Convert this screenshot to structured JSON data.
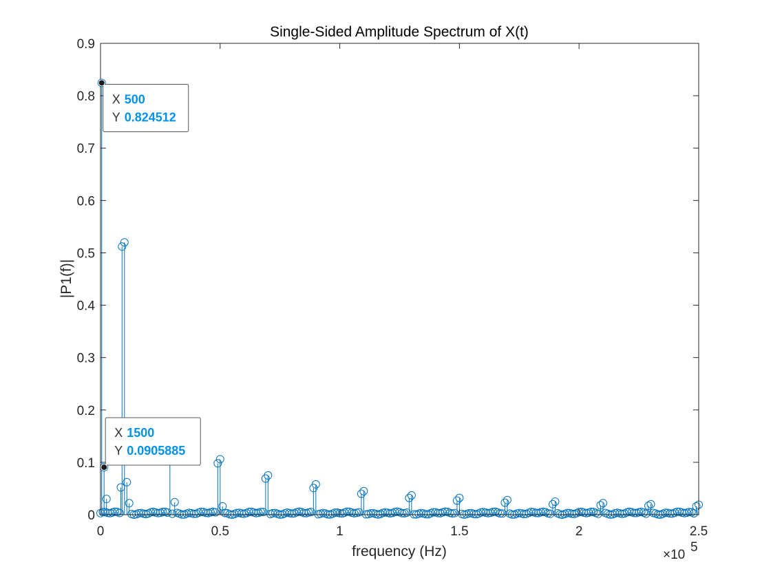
{
  "chart_data": {
    "type": "stem",
    "title": "Single-Sided Amplitude Spectrum of X(t)",
    "xlabel": "frequency (Hz)",
    "ylabel": "|P1(f)|",
    "xlim": [
      0,
      250000
    ],
    "ylim": [
      0,
      0.9
    ],
    "x_exponent_label": "×10",
    "x_exponent": "5",
    "x_ticks": [
      0,
      50000,
      100000,
      150000,
      200000,
      250000
    ],
    "x_tick_labels": [
      "0",
      "0.5",
      "1",
      "1.5",
      "2",
      "2.5"
    ],
    "y_ticks": [
      0,
      0.1,
      0.2,
      0.3,
      0.4,
      0.5,
      0.6,
      0.7,
      0.8,
      0.9
    ],
    "y_tick_labels": [
      "0",
      "0.1",
      "0.2",
      "0.3",
      "0.4",
      "0.5",
      "0.6",
      "0.7",
      "0.8",
      "0.9"
    ],
    "grid": false,
    "box": true,
    "series": [
      {
        "color": "#0072BD",
        "marker": "circle-open",
        "sample_spacing_hz": 1000,
        "noise_floor": 0.003,
        "peaks": [
          {
            "x": 500,
            "y": 0.824512
          },
          {
            "x": 1500,
            "y": 0.0905885
          },
          {
            "x": 2500,
            "y": 0.03
          },
          {
            "x": 8500,
            "y": 0.052
          },
          {
            "x": 9000,
            "y": 0.512
          },
          {
            "x": 10000,
            "y": 0.52
          },
          {
            "x": 11000,
            "y": 0.062
          },
          {
            "x": 12000,
            "y": 0.022
          },
          {
            "x": 29000,
            "y": 0.115
          },
          {
            "x": 31000,
            "y": 0.024
          },
          {
            "x": 49000,
            "y": 0.098
          },
          {
            "x": 50000,
            "y": 0.106
          },
          {
            "x": 51000,
            "y": 0.016
          },
          {
            "x": 69000,
            "y": 0.069
          },
          {
            "x": 70000,
            "y": 0.075
          },
          {
            "x": 89000,
            "y": 0.051
          },
          {
            "x": 90000,
            "y": 0.058
          },
          {
            "x": 109000,
            "y": 0.04
          },
          {
            "x": 110000,
            "y": 0.045
          },
          {
            "x": 129000,
            "y": 0.032
          },
          {
            "x": 130000,
            "y": 0.037
          },
          {
            "x": 149000,
            "y": 0.027
          },
          {
            "x": 150000,
            "y": 0.032
          },
          {
            "x": 169000,
            "y": 0.023
          },
          {
            "x": 170000,
            "y": 0.028
          },
          {
            "x": 189000,
            "y": 0.02
          },
          {
            "x": 190000,
            "y": 0.025
          },
          {
            "x": 209000,
            "y": 0.018
          },
          {
            "x": 210000,
            "y": 0.022
          },
          {
            "x": 229000,
            "y": 0.017
          },
          {
            "x": 230000,
            "y": 0.02
          },
          {
            "x": 249000,
            "y": 0.016
          },
          {
            "x": 250000,
            "y": 0.019
          }
        ]
      }
    ],
    "datatips": [
      {
        "x_key": "X",
        "x_value": "500",
        "y_key": "Y",
        "y_value": "0.824512",
        "anchor_x": 500,
        "anchor_y": 0.824512
      },
      {
        "x_key": "X",
        "x_value": "1500",
        "y_key": "Y",
        "y_value": "0.0905885",
        "anchor_x": 1500,
        "anchor_y": 0.0905885
      }
    ],
    "datatip_value_color": "#0093E9"
  }
}
